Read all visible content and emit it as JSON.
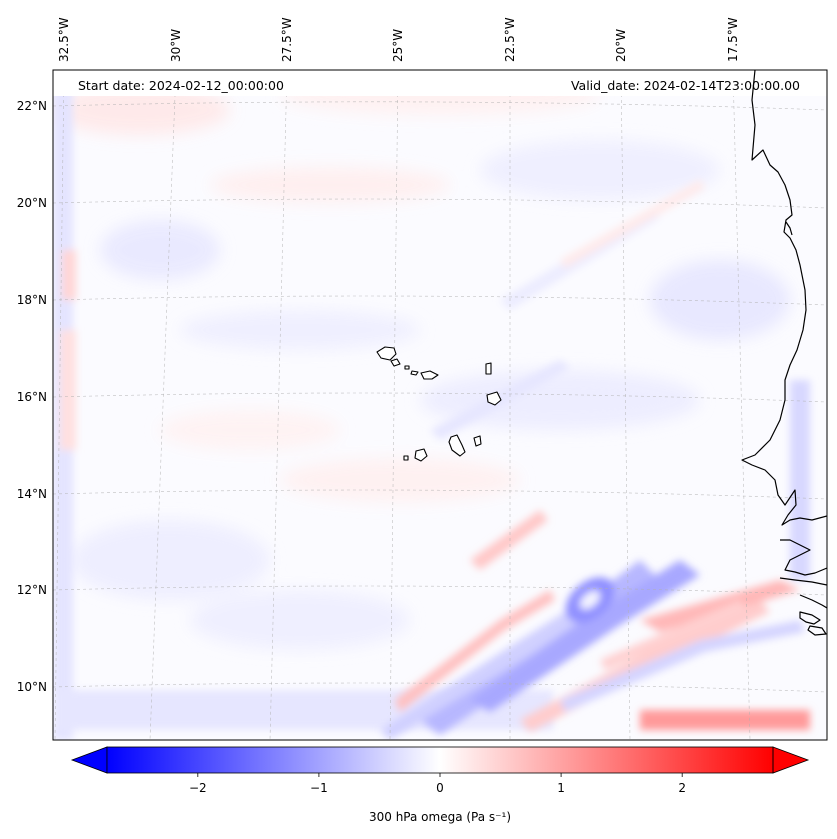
{
  "header": {
    "start_date": "Start date: 2024-02-12_00:00:00",
    "valid_date": "Valid_date: 2024-02-14T23:00:00.00"
  },
  "map": {
    "lon_labels": [
      "32.5°W",
      "30°W",
      "27.5°W",
      "25°W",
      "22.5°W",
      "20°W",
      "17.5°W"
    ],
    "lat_labels": [
      "22°N",
      "20°N",
      "18°N",
      "16°N",
      "14°N",
      "12°N",
      "10°N"
    ],
    "field": "300 hPa omega",
    "colormap": "bwr",
    "features": [
      "coastline-west-africa",
      "cape-verde-islands"
    ]
  },
  "colorbar": {
    "label": "300 hPa omega (Pa s⁻¹)",
    "ticks": [
      "−2",
      "−1",
      "0",
      "1",
      "2"
    ],
    "range": [
      -2.75,
      2.75
    ],
    "extend": "both",
    "colors": {
      "min": "#0000ff",
      "mid": "#ffffff",
      "max": "#ff0000"
    }
  }
}
